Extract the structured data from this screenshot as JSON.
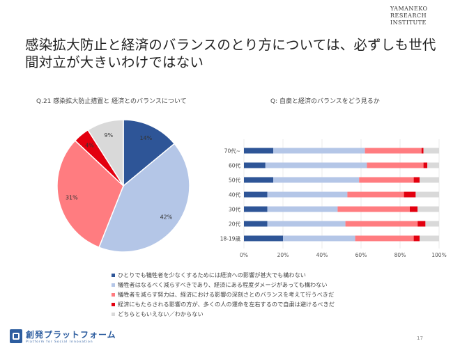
{
  "brand": {
    "line1": "YAMANEKO",
    "line2": "RESEARCH",
    "line3": "INSTITUTE"
  },
  "title": "感染拡大防止と経済のバランスのとり方については、必ずしも世代間対立が大きいわけではない",
  "chart_data": [
    {
      "type": "pie",
      "title": "Q.21 感染拡大防止措置と 経済とのバランスについて",
      "categories": [
        "ひとりでも犠牲者を少なくするためには経済への影響が甚大でも構わない",
        "犠牲者はなるべく減らすべきであり、経済にある程度ダメージがあっても構わない",
        "犠牲者を減らす努力は、経済における影響の深刻さとのバランスを考えて行うべきだ",
        "経済にもたらされる影響の方が、多くの人の運命を左右するので自粛は避けるべきだ",
        "どちらともいえない／わからない"
      ],
      "values": [
        14,
        42,
        31,
        4,
        9
      ],
      "labels": [
        "14%",
        "42%",
        "31%",
        "4%",
        "9%"
      ],
      "colors": [
        "#2e5597",
        "#b4c6e7",
        "#ff7c80",
        "#e3000f",
        "#d9d9d9"
      ]
    },
    {
      "type": "bar",
      "orientation": "horizontal",
      "stacked": "percent",
      "title": "Q: 自粛と経済のバランスをどう見るか",
      "categories": [
        "70代~",
        "60代",
        "50代",
        "40代",
        "30代",
        "20代",
        "18-19歳"
      ],
      "series": [
        {
          "name": "ひとりでも犠牲者を少なくするためには経済への影響が甚大でも構わない",
          "color": "#2e5597",
          "values": [
            15,
            11,
            15,
            12,
            12,
            12,
            20
          ]
        },
        {
          "name": "犠牲者はなるべく減らすべきであり、経済にある程度ダメージがあっても構わない",
          "color": "#b4c6e7",
          "values": [
            47,
            52,
            44,
            41,
            36,
            40,
            37
          ]
        },
        {
          "name": "犠牲者を減らす努力は、経済における影響の深刻さとのバランスを考えて行うべきだ",
          "color": "#ff7c80",
          "values": [
            29,
            29,
            28,
            29,
            37,
            37,
            30
          ]
        },
        {
          "name": "経済にもたらされる影響の方が、多くの人の運命を左右するので自粛は避けるべきだ",
          "color": "#e3000f",
          "values": [
            1,
            2,
            3,
            6,
            4,
            4,
            3
          ]
        },
        {
          "name": "どちらともいえない／わからない",
          "color": "#d9d9d9",
          "values": [
            8,
            6,
            10,
            12,
            11,
            7,
            10
          ]
        }
      ],
      "xlim": [
        0,
        100
      ],
      "xticks": [
        "0%",
        "20%",
        "40%",
        "60%",
        "80%",
        "100%"
      ],
      "grid": true,
      "legend": "bottom"
    }
  ],
  "footer": {
    "logo_text": "創発プラットフォーム",
    "logo_tagline": "Platform for Social Innovation",
    "page_number": "17"
  }
}
